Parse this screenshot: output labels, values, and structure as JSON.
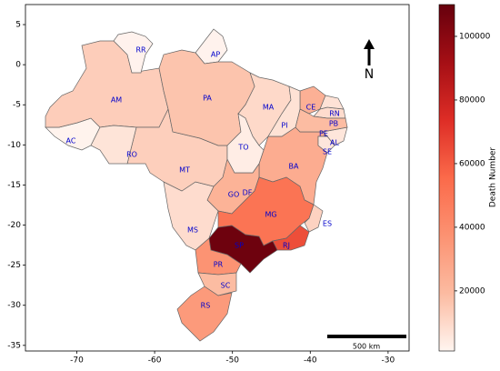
{
  "chart_data": {
    "type": "choropleth",
    "categories": [
      "AC",
      "AL",
      "AM",
      "AP",
      "BA",
      "CE",
      "DF",
      "ES",
      "GO",
      "MA",
      "MG",
      "MS",
      "MT",
      "PA",
      "PB",
      "PE",
      "PI",
      "PR",
      "RJ",
      "RN",
      "RO",
      "RR",
      "RS",
      "SC",
      "SE",
      "SP",
      "TO"
    ],
    "values": [
      1800,
      5900,
      13500,
      1900,
      26000,
      24000,
      10000,
      12000,
      23000,
      10000,
      51000,
      9000,
      13000,
      16500,
      9000,
      19000,
      7200,
      37000,
      64000,
      7000,
      6500,
      1900,
      34000,
      19000,
      5700,
      108000,
      3700
    ],
    "xlim": [
      -76.6,
      -27.3
    ],
    "ylim": [
      -35.7,
      7.5
    ],
    "xticks": [
      -70,
      -60,
      -50,
      -40,
      -30
    ],
    "yticks": [
      5,
      0,
      -5,
      -10,
      -15,
      -20,
      -25,
      -30,
      -35
    ],
    "colormap": [
      "#fff5f0",
      "#fcbba1",
      "#fc9272",
      "#fb6a4a",
      "#de2d26",
      "#a50f15",
      "#67000d"
    ],
    "colorbar": {
      "label": "Death Number",
      "lim": [
        1100,
        110000
      ],
      "ticks": [
        20000,
        40000,
        60000,
        80000,
        100000
      ]
    },
    "north": "N",
    "scale_bar": "500 km"
  }
}
